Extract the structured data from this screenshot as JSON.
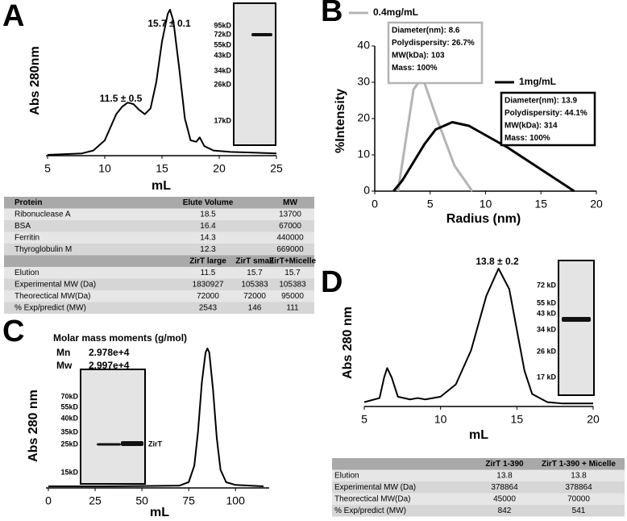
{
  "chart_data": [
    {
      "type": "line",
      "panel": "A",
      "xlabel": "mL",
      "ylabel": "Abs 280nm",
      "x": [
        5,
        8,
        9,
        10,
        11,
        11.5,
        12,
        12.5,
        13,
        13.5,
        14,
        14.5,
        15,
        15.5,
        15.7,
        16,
        16.5,
        17,
        17.5,
        18,
        18.3,
        18.7,
        19.5,
        21,
        23,
        25
      ],
      "values": [
        0,
        0.01,
        0.03,
        0.1,
        0.28,
        0.33,
        0.36,
        0.35,
        0.31,
        0.28,
        0.32,
        0.5,
        0.78,
        0.97,
        1.0,
        0.92,
        0.6,
        0.25,
        0.1,
        0.09,
        0.12,
        0.06,
        0.03,
        0.02,
        0.015,
        0.01
      ],
      "color": "#000000",
      "xlim": [
        5,
        25
      ],
      "xticks": [
        5,
        10,
        15,
        20,
        25
      ],
      "ylim": [
        0,
        1
      ],
      "annotations": [
        "15.7 ± 0.1",
        "11.5 ± 0.5"
      ],
      "inset": {
        "markers": [
          "95kD",
          "72kD",
          "55kD",
          "43kD",
          "34kD",
          "26kD",
          "17kD"
        ]
      }
    },
    {
      "type": "line",
      "panel": "B",
      "xlabel": "Radius (nm)",
      "ylabel": "%Intensity",
      "xlim": [
        0,
        20
      ],
      "xticks": [
        0,
        5,
        10,
        15,
        20
      ],
      "ylim": [
        0,
        40
      ],
      "yticks": [
        0,
        10,
        20,
        30,
        40
      ],
      "series": [
        {
          "name": "0.4mg/mL",
          "color": "#b4b4b4",
          "x": [
            2.1,
            3.5,
            4.3,
            5.6,
            7.2,
            8.8
          ],
          "values": [
            0,
            28,
            31.5,
            20,
            7,
            0
          ],
          "info": [
            "Diameter(nm): 8.6",
            "Polydispersity: 26.7%",
            "MW(kDa): 103",
            "Mass: 100%"
          ]
        },
        {
          "name": "1mg/mL",
          "color": "#000000",
          "x": [
            1.7,
            2.5,
            4.5,
            5.5,
            7,
            8.5,
            12,
            14.5,
            18
          ],
          "values": [
            0,
            3,
            13,
            17,
            19,
            18,
            12,
            7,
            0
          ],
          "info": [
            "Diameter(nm): 13.9",
            "Polydispersity: 44.1%",
            "MW(kDa): 314",
            "Mass: 100%"
          ]
        }
      ]
    },
    {
      "type": "line",
      "panel": "C",
      "xlabel": "mL",
      "ylabel": "Abs 280 nm",
      "x": [
        0,
        25,
        50,
        70,
        75,
        78,
        80,
        82,
        84,
        85,
        86,
        88,
        90,
        92,
        95,
        100,
        115
      ],
      "values": [
        0,
        0,
        0.002,
        0.005,
        0.03,
        0.15,
        0.4,
        0.75,
        0.97,
        1.0,
        0.97,
        0.7,
        0.35,
        0.12,
        0.03,
        0.01,
        0
      ],
      "color": "#000000",
      "xlim": [
        0,
        118
      ],
      "xticks": [
        0,
        25,
        50,
        75,
        100
      ],
      "ylim": [
        0,
        1
      ],
      "moments": {
        "title": "Molar mass moments (g/mol)",
        "rows": [
          [
            "Mn",
            "2.978e+4"
          ],
          [
            "Mw",
            "2.997e+4"
          ]
        ]
      },
      "inset": {
        "markers": [
          "70kD",
          "55kD",
          "40kD",
          "35kD",
          "25kD",
          "15kD"
        ],
        "band_label": "ZirT"
      }
    },
    {
      "type": "line",
      "panel": "D",
      "xlabel": "mL",
      "ylabel": "Abs 280 nm",
      "x": [
        5,
        6,
        6.3,
        6.5,
        6.8,
        7.2,
        8,
        8.5,
        9,
        10,
        11,
        12,
        13,
        13.8,
        14.5,
        15,
        15.5,
        16,
        17,
        18,
        20
      ],
      "values": [
        0.02,
        0.05,
        0.2,
        0.27,
        0.2,
        0.06,
        0.04,
        0.05,
        0.04,
        0.06,
        0.15,
        0.4,
        0.8,
        1.0,
        0.85,
        0.55,
        0.25,
        0.08,
        0.02,
        0.01,
        0.01
      ],
      "color": "#000000",
      "xlim": [
        5,
        20
      ],
      "xticks": [
        5,
        10,
        15,
        20
      ],
      "ylim": [
        0,
        1
      ],
      "annotations": [
        "13.8 ± 0.2"
      ],
      "inset": {
        "markers": [
          "72 kD",
          "55 kD",
          "43 kD",
          "34 kD",
          "26 kD",
          "17 kD"
        ]
      }
    }
  ],
  "tables": [
    {
      "sections": [
        {
          "header": [
            "Protein",
            "Elute Volume",
            "MW"
          ],
          "rows": [
            [
              "Ribonuclease A",
              18.5,
              13700
            ],
            [
              "BSA",
              16.4,
              67000
            ],
            [
              "Ferritin",
              14.3,
              440000
            ],
            [
              "Thyroglobulin M",
              12.3,
              669000
            ]
          ]
        },
        {
          "header": [
            "ZirT large",
            "ZirT small",
            "ZirT+Micelle"
          ],
          "rows": [
            [
              "Elution",
              11.5,
              15.7,
              15.7
            ],
            [
              "Experimental MW (Da)",
              1830927,
              105383,
              105383
            ],
            [
              "Theorectical MW(Da)",
              72000,
              72000,
              95000
            ],
            [
              "% Exp/predict (MW)",
              2543,
              146,
              111
            ]
          ]
        }
      ]
    },
    {
      "sections": [
        {
          "header": [
            "ZirT 1-390",
            "ZirT 1-390 + Micelle"
          ],
          "rows": [
            [
              "Elution",
              13.8,
              13.8
            ],
            [
              "Experimental MW (Da)",
              378864,
              378864
            ],
            [
              "Theorectical MW(Da)",
              45000,
              70000
            ],
            [
              "% Exp/predict (MW)",
              842,
              541
            ]
          ]
        }
      ]
    }
  ]
}
